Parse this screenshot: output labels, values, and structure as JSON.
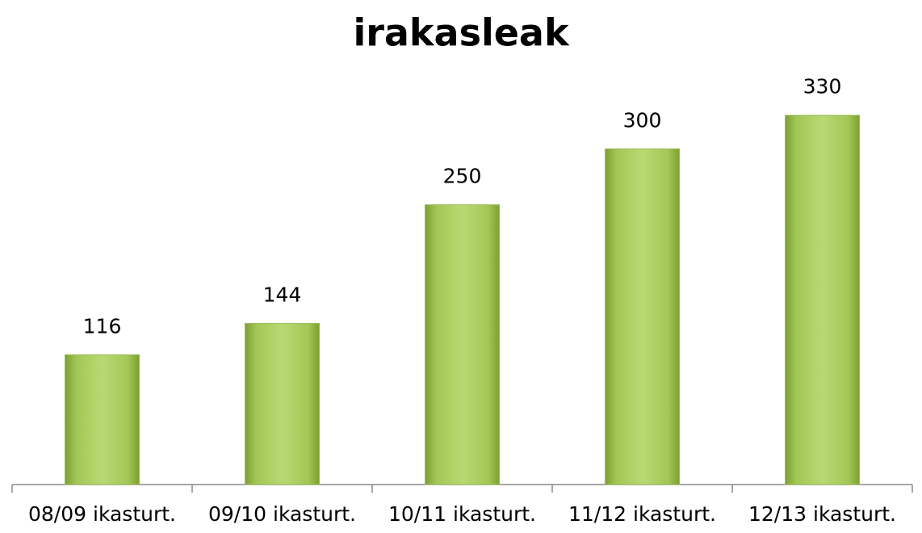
{
  "chart_data": {
    "type": "bar",
    "title": "irakasleak",
    "categories": [
      "08/09 ikasturt.",
      "09/10 ikasturt.",
      "10/11 ikasturt.",
      "11/12 ikasturt.",
      "12/13 ikasturt."
    ],
    "values": [
      116,
      144,
      250,
      300,
      330
    ],
    "color": "#9bbb59",
    "ylim": [
      0,
      350
    ],
    "data_labels": true
  }
}
